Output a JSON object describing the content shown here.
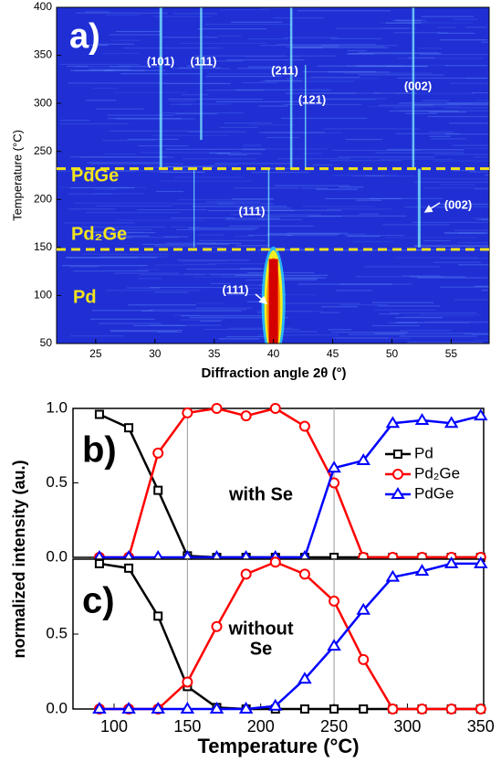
{
  "chart_data": [
    {
      "type": "heatmap",
      "title": "a)",
      "xlabel": "Diffraction angle 2θ (°)",
      "ylabel": "Temperature (°C)",
      "xlim": [
        21.7,
        58.2
      ],
      "xticks": [
        25,
        30,
        35,
        40,
        45,
        50,
        55
      ],
      "ylim": [
        50,
        400
      ],
      "yticks": [
        50,
        100,
        150,
        200,
        250,
        300,
        350,
        400
      ],
      "boundaries": [
        148,
        232
      ],
      "boundary_color": "#f2e41c",
      "phase_labels": [
        "PdGe",
        "Pd₂Ge",
        "Pd"
      ],
      "annotations": [
        "(101)",
        "(111)",
        "(211)",
        "(121)",
        "(002)",
        "(111)",
        "(002)",
        "(111)"
      ]
    },
    {
      "type": "line",
      "title": "b)",
      "annotation": [
        "with Se"
      ],
      "ylabel": "normalized intensity (au.)",
      "x": [
        90,
        110,
        130,
        150,
        170,
        190,
        210,
        230,
        250,
        270,
        290,
        310,
        330,
        350
      ],
      "series": [
        {
          "name": "Pd",
          "color": "#000000",
          "marker": "square",
          "values": [
            0.96,
            0.87,
            0.45,
            0.01,
            0,
            0,
            0,
            0,
            0,
            0,
            0,
            0,
            0,
            0
          ]
        },
        {
          "name": "Pd₂Ge",
          "color": "#ff0000",
          "marker": "circle",
          "values": [
            0,
            0,
            0.7,
            0.97,
            1.0,
            0.95,
            1.0,
            0.88,
            0.5,
            0,
            0,
            0,
            0,
            0
          ]
        },
        {
          "name": "PdGe",
          "color": "#0000ff",
          "marker": "triangle",
          "values": [
            0,
            0,
            0,
            0,
            0,
            0,
            0,
            0,
            0.6,
            0.65,
            0.9,
            0.92,
            0.9,
            0.95
          ]
        }
      ],
      "xlim": [
        72,
        352
      ],
      "ylim": [
        0,
        1.0
      ],
      "yticks": [
        {
          "value": 0,
          "label": "0.0"
        },
        {
          "value": 0.5,
          "label": "0.5"
        },
        {
          "value": 1.0,
          "label": "1.0"
        }
      ],
      "vlines": [
        150,
        250
      ],
      "legend": "right"
    },
    {
      "type": "line",
      "title": "c)",
      "annotation": [
        "without",
        "Se"
      ],
      "xlabel": "Temperature (°C)",
      "x": [
        90,
        110,
        130,
        150,
        170,
        190,
        210,
        230,
        250,
        270,
        290,
        310,
        330,
        350
      ],
      "series": [
        {
          "name": "Pd",
          "color": "#000000",
          "marker": "square",
          "values": [
            0.97,
            0.94,
            0.62,
            0.15,
            0.01,
            0,
            0,
            0,
            0,
            0,
            0,
            0,
            0,
            0
          ]
        },
        {
          "name": "Pd₂Ge",
          "color": "#ff0000",
          "marker": "circle",
          "values": [
            0,
            0,
            0,
            0.18,
            0.55,
            0.9,
            0.98,
            0.9,
            0.72,
            0.33,
            0,
            0,
            0,
            0
          ]
        },
        {
          "name": "PdGe",
          "color": "#0000ff",
          "marker": "triangle",
          "values": [
            0,
            0,
            0,
            0,
            0,
            0,
            0.02,
            0.2,
            0.42,
            0.66,
            0.88,
            0.92,
            0.97,
            0.97
          ]
        }
      ],
      "xlim": [
        72,
        352
      ],
      "ylim": [
        0,
        1.0
      ],
      "yticks": [
        {
          "value": 0,
          "label": "0.0"
        },
        {
          "value": 0.5,
          "label": "0.5"
        }
      ],
      "xticks": [
        100,
        150,
        200,
        250,
        300,
        350
      ],
      "vlines": [
        150,
        250
      ]
    }
  ]
}
